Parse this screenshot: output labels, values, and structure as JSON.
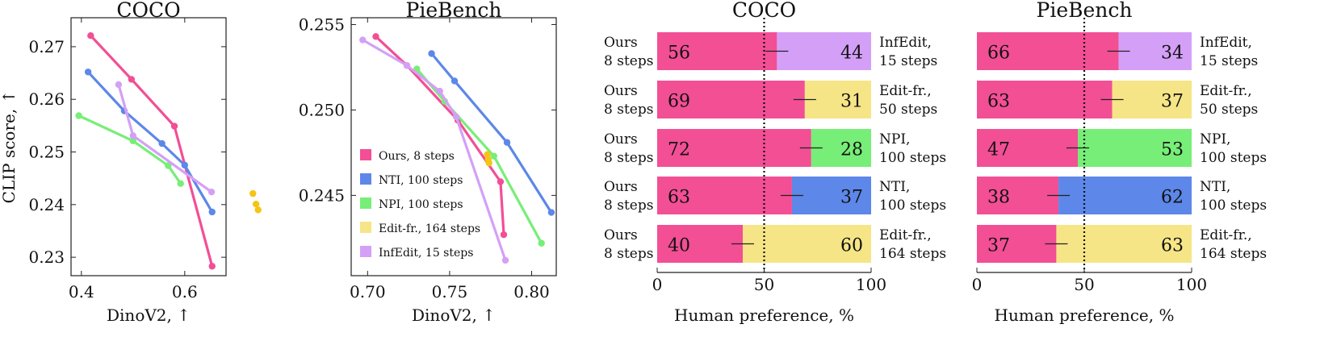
{
  "colors": {
    "ours": "#f24f95",
    "nti": "#5d87e8",
    "npi": "#77ee77",
    "editfr": "#f6e587",
    "editfr_dots": "#f5c515",
    "infedit": "#d4a0f7",
    "frame": "#222222"
  },
  "chart_data": [
    {
      "type": "scatter",
      "title": "COCO",
      "xlabel": "DinoV2, ↑",
      "ylabel": "CLIP score, ↑",
      "xlim": [
        0.38,
        0.68
      ],
      "ylim": [
        0.2265,
        0.2755
      ],
      "xticks": [
        0.4,
        0.6
      ],
      "xtick_labels": [
        "0.4",
        "0.6"
      ],
      "yticks": [
        0.23,
        0.24,
        0.25,
        0.26,
        0.27
      ],
      "ytick_labels": [
        "0.23",
        "0.24",
        "0.25",
        "0.26",
        "0.27"
      ],
      "series": [
        {
          "name": "Ours, 8 steps",
          "color_key": "ours",
          "points": [
            [
              0.418,
              0.2721
            ],
            [
              0.497,
              0.2638
            ],
            [
              0.58,
              0.2549
            ],
            [
              0.653,
              0.2283
            ]
          ]
        },
        {
          "name": "NTI, 100 steps",
          "color_key": "nti",
          "points": [
            [
              0.413,
              0.2652
            ],
            [
              0.483,
              0.2578
            ],
            [
              0.556,
              0.2516
            ],
            [
              0.6,
              0.2475
            ],
            [
              0.653,
              0.2386
            ]
          ]
        },
        {
          "name": "NPI, 100 steps",
          "color_key": "npi",
          "points": [
            [
              0.395,
              0.2569
            ],
            [
              0.5,
              0.2521
            ],
            [
              0.568,
              0.2474
            ],
            [
              0.592,
              0.244
            ]
          ]
        },
        {
          "name": "InfEdit, 15 steps",
          "color_key": "infedit",
          "points": [
            [
              0.472,
              0.2628
            ],
            [
              0.5,
              0.2531
            ],
            [
              0.652,
              0.2424
            ]
          ]
        },
        {
          "name": "Edit-fr., 164 steps",
          "color_key": "editfr_dots",
          "line": false,
          "points": [
            [
              0.732,
              0.2421
            ],
            [
              0.738,
              0.2401
            ],
            [
              0.742,
              0.239
            ]
          ]
        }
      ]
    },
    {
      "type": "scatter",
      "title": "PieBench",
      "xlabel": "DinoV2, ↑",
      "ylabel": "",
      "xlim": [
        0.69,
        0.815
      ],
      "ylim": [
        0.2403,
        0.2554
      ],
      "xticks": [
        0.7,
        0.75,
        0.8
      ],
      "xtick_labels": [
        "0.70",
        "0.75",
        "0.80"
      ],
      "yticks": [
        0.245,
        0.25,
        0.255
      ],
      "ytick_labels": [
        "0.245",
        "0.250",
        "0.255"
      ],
      "legend": {
        "placement": "left-center",
        "entries": [
          {
            "label": "Ours, 8 steps",
            "color_key": "ours"
          },
          {
            "label": "NTI, 100 steps",
            "color_key": "nti"
          },
          {
            "label": "NPI, 100 steps",
            "color_key": "npi"
          },
          {
            "label": "Edit-fr., 164 steps",
            "color_key": "editfr"
          },
          {
            "label": "InfEdit, 15 steps",
            "color_key": "infedit"
          }
        ]
      },
      "series": [
        {
          "name": "Ours, 8 steps",
          "color_key": "ours",
          "points": [
            [
              0.705,
              0.2543
            ],
            [
              0.724,
              0.2526
            ],
            [
              0.755,
              0.2494
            ],
            [
              0.781,
              0.2458
            ],
            [
              0.783,
              0.2427
            ]
          ]
        },
        {
          "name": "NTI, 100 steps",
          "color_key": "nti",
          "points": [
            [
              0.739,
              0.2533
            ],
            [
              0.753,
              0.2517
            ],
            [
              0.785,
              0.2481
            ],
            [
              0.812,
              0.244
            ]
          ]
        },
        {
          "name": "NPI, 100 steps",
          "color_key": "npi",
          "points": [
            [
              0.73,
              0.2524
            ],
            [
              0.747,
              0.2505
            ],
            [
              0.777,
              0.2473
            ],
            [
              0.806,
              0.2422
            ]
          ]
        },
        {
          "name": "InfEdit, 15 steps",
          "color_key": "infedit",
          "points": [
            [
              0.697,
              0.2541
            ],
            [
              0.724,
              0.2526
            ],
            [
              0.744,
              0.2511
            ],
            [
              0.754,
              0.2496
            ],
            [
              0.784,
              0.2412
            ]
          ]
        },
        {
          "name": "Edit-fr., 164 steps",
          "color_key": "editfr_dots",
          "line": false,
          "points": [
            [
              0.773,
              0.2474
            ],
            [
              0.7735,
              0.2471
            ],
            [
              0.774,
              0.2469
            ]
          ]
        }
      ]
    },
    {
      "type": "bar",
      "orientation": "horizontal-stacked",
      "title": "COCO",
      "xlabel": "Human preference, %",
      "xlim": [
        0,
        100
      ],
      "xticks": [
        0,
        50,
        100
      ],
      "xtick_labels": [
        "0",
        "50",
        "100"
      ],
      "reference_line": 50,
      "rows": [
        {
          "left_label": [
            "Ours",
            "8 steps"
          ],
          "ours": 56,
          "other": 44,
          "other_label": [
            "InfEdit,",
            "15 steps"
          ],
          "other_color_key": "infedit"
        },
        {
          "left_label": [
            "Ours",
            "8 steps"
          ],
          "ours": 69,
          "other": 31,
          "other_label": [
            "Edit-fr.,",
            "50 steps"
          ],
          "other_color_key": "editfr"
        },
        {
          "left_label": [
            "Ours",
            "8 steps"
          ],
          "ours": 72,
          "other": 28,
          "other_label": [
            "NPI,",
            "100 steps"
          ],
          "other_color_key": "npi"
        },
        {
          "left_label": [
            "Ours",
            "8 steps"
          ],
          "ours": 63,
          "other": 37,
          "other_label": [
            "NTI,",
            "100 steps"
          ],
          "other_color_key": "nti"
        },
        {
          "left_label": [
            "Ours",
            "8 steps"
          ],
          "ours": 40,
          "other": 60,
          "other_label": [
            "Edit-fr.,",
            "164 steps"
          ],
          "other_color_key": "editfr"
        }
      ]
    },
    {
      "type": "bar",
      "orientation": "horizontal-stacked",
      "title": "PieBench",
      "xlabel": "Human preference, %",
      "xlim": [
        0,
        100
      ],
      "xticks": [
        0,
        50,
        100
      ],
      "xtick_labels": [
        "0",
        "50",
        "100"
      ],
      "reference_line": 50,
      "rows": [
        {
          "ours": 66,
          "other": 34,
          "other_label": [
            "InfEdit,",
            "15 steps"
          ],
          "other_color_key": "infedit"
        },
        {
          "ours": 63,
          "other": 37,
          "other_label": [
            "Edit-fr.,",
            "50 steps"
          ],
          "other_color_key": "editfr"
        },
        {
          "ours": 47,
          "other": 53,
          "other_label": [
            "NPI,",
            "100 steps"
          ],
          "other_color_key": "npi"
        },
        {
          "ours": 38,
          "other": 62,
          "other_label": [
            "NTI,",
            "100 steps"
          ],
          "other_color_key": "nti"
        },
        {
          "ours": 37,
          "other": 63,
          "other_label": [
            "Edit-fr.,",
            "164 steps"
          ],
          "other_color_key": "editfr"
        }
      ]
    }
  ]
}
